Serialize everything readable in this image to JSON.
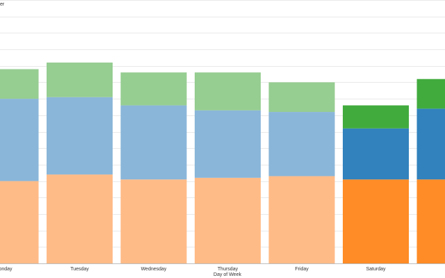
{
  "chart_data": {
    "type": "bar",
    "stacked": true,
    "title": "",
    "xlabel": "Day of Week",
    "ylabel_fragment": "er",
    "ylim": [
      0,
      16
    ],
    "grid": true,
    "categories": [
      "Monday",
      "Tuesday",
      "Wednesday",
      "Thursday",
      "Friday",
      "Saturday",
      "Sunday"
    ],
    "category_tick_labels": [
      "onday",
      "Tuesday",
      "Wednesday",
      "Thursday",
      "Friday",
      "Saturday",
      "Su"
    ],
    "highlighted_categories": [
      "Saturday",
      "Sunday"
    ],
    "series": [
      {
        "values": [
          5.0,
          5.4,
          5.1,
          5.2,
          5.3,
          5.1,
          5.1
        ],
        "color": "#ffbb87",
        "highlight_color": "#ff8c26"
      },
      {
        "values": [
          5.0,
          4.7,
          4.5,
          4.1,
          3.9,
          3.1,
          4.3
        ],
        "color": "#8ab6d9",
        "highlight_color": "#3182bd"
      },
      {
        "values": [
          1.8,
          2.1,
          2.0,
          2.3,
          1.8,
          1.4,
          1.8
        ],
        "color": "#96cd91",
        "highlight_color": "#41ab3e"
      }
    ]
  }
}
